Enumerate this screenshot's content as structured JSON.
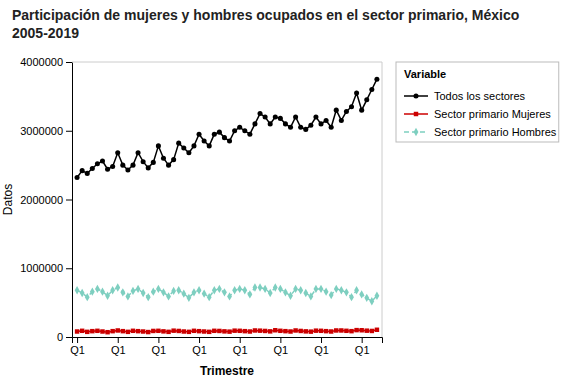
{
  "chart_data": {
    "type": "line",
    "title": "Participación de mujeres y hombres ocupados en el sector primario, México 2005-2019",
    "x_label": "Trimestre",
    "y_label": "Datos",
    "legend_title": "Variable",
    "legend": "right",
    "grid": false,
    "categories": [
      "Q1",
      null,
      null,
      null,
      null,
      null,
      null,
      null,
      "Q1",
      null,
      null,
      null,
      null,
      null,
      null,
      null,
      "Q1",
      null,
      null,
      null,
      null,
      null,
      null,
      null,
      "Q1",
      null,
      null,
      null,
      null,
      null,
      null,
      null,
      "Q1",
      null,
      null,
      null,
      null,
      null,
      null,
      null,
      "Q1",
      null,
      null,
      null,
      null,
      null,
      null,
      null,
      "Q1",
      null,
      null,
      null,
      null,
      null,
      null,
      null,
      "Q1",
      null,
      null,
      null
    ],
    "ylim": [
      0,
      4000000
    ],
    "yticks": [
      0,
      1000000,
      2000000,
      3000000,
      4000000
    ],
    "series": [
      {
        "name": "Todos los sectores",
        "color": "#000000",
        "marker": "circle",
        "line_style": "solid",
        "values": [
          2320000,
          2420000,
          2380000,
          2450000,
          2520000,
          2560000,
          2440000,
          2480000,
          2680000,
          2500000,
          2430000,
          2500000,
          2680000,
          2550000,
          2460000,
          2540000,
          2780000,
          2600000,
          2500000,
          2580000,
          2820000,
          2750000,
          2680000,
          2780000,
          2950000,
          2850000,
          2780000,
          2950000,
          2980000,
          2900000,
          2850000,
          3000000,
          3050000,
          3000000,
          2950000,
          3100000,
          3250000,
          3200000,
          3100000,
          3200000,
          3180000,
          3100000,
          3050000,
          3200000,
          3050000,
          3020000,
          3080000,
          3200000,
          3100000,
          3150000,
          3050000,
          3300000,
          3150000,
          3280000,
          3350000,
          3550000,
          3300000,
          3450000,
          3600000,
          3750000
        ]
      },
      {
        "name": "Sector primario Mujeres",
        "color": "#cc0000",
        "marker": "square",
        "line_style": "solid",
        "values": [
          80000,
          90000,
          75000,
          85000,
          90000,
          80000,
          70000,
          85000,
          95000,
          85000,
          75000,
          90000,
          85000,
          80000,
          72000,
          88000,
          90000,
          82000,
          75000,
          92000,
          88000,
          80000,
          75000,
          90000,
          85000,
          80000,
          75000,
          90000,
          88000,
          82000,
          78000,
          92000,
          90000,
          85000,
          80000,
          95000,
          92000,
          88000,
          82000,
          98000,
          90000,
          85000,
          80000,
          95000,
          88000,
          82000,
          78000,
          92000,
          90000,
          85000,
          80000,
          95000,
          95000,
          90000,
          85000,
          100000,
          98000,
          92000,
          88000,
          105000
        ]
      },
      {
        "name": "Sector primario Hombres",
        "color": "#7ecfc0",
        "marker": "diamond",
        "line_style": "dashed",
        "values": [
          680000,
          640000,
          580000,
          660000,
          700000,
          660000,
          600000,
          680000,
          720000,
          650000,
          590000,
          670000,
          700000,
          640000,
          580000,
          660000,
          700000,
          650000,
          590000,
          670000,
          680000,
          630000,
          570000,
          650000,
          680000,
          630000,
          580000,
          680000,
          700000,
          650000,
          590000,
          680000,
          700000,
          680000,
          620000,
          720000,
          720000,
          700000,
          640000,
          720000,
          700000,
          650000,
          600000,
          700000,
          680000,
          640000,
          590000,
          700000,
          700000,
          660000,
          610000,
          700000,
          680000,
          650000,
          580000,
          680000,
          620000,
          570000,
          520000,
          600000
        ]
      }
    ]
  }
}
